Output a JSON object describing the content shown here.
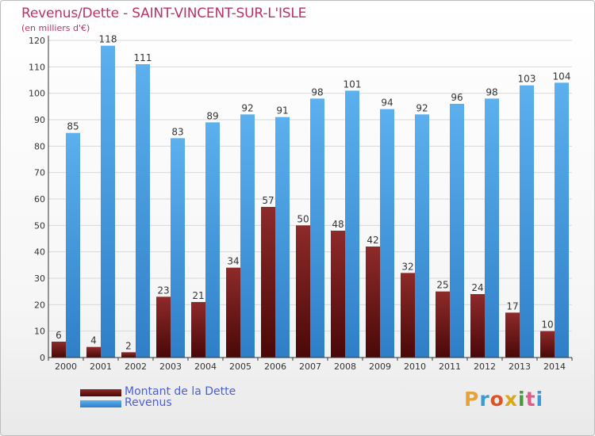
{
  "colors": {
    "dette": "#7b1c1c",
    "revenus": "#3a8fd8",
    "title": "#b8336a",
    "legend_text": "#4a5fd6"
  },
  "chart_data": {
    "type": "bar",
    "title": "Revenus/Dette - SAINT-VINCENT-SUR-L'ISLE",
    "subtitle": "(en milliers d'€)",
    "xlabel": "",
    "ylabel": "",
    "ylim": [
      0,
      120
    ],
    "yticks": [
      0,
      10,
      20,
      30,
      40,
      50,
      60,
      70,
      80,
      90,
      100,
      110,
      120
    ],
    "grid": true,
    "legend_position": "bottom-left",
    "categories": [
      "2000",
      "2001",
      "2002",
      "2003",
      "2004",
      "2005",
      "2006",
      "2007",
      "2008",
      "2009",
      "2010",
      "2011",
      "2012",
      "2013",
      "2014"
    ],
    "series": [
      {
        "name": "Montant de la Dette",
        "values": [
          6,
          4,
          2,
          23,
          21,
          34,
          57,
          50,
          48,
          42,
          32,
          25,
          24,
          17,
          10
        ]
      },
      {
        "name": "Revenus",
        "values": [
          85,
          118,
          111,
          83,
          89,
          92,
          91,
          98,
          101,
          94,
          92,
          96,
          98,
          103,
          104
        ]
      }
    ]
  },
  "logo": {
    "text": "Proxiti"
  }
}
